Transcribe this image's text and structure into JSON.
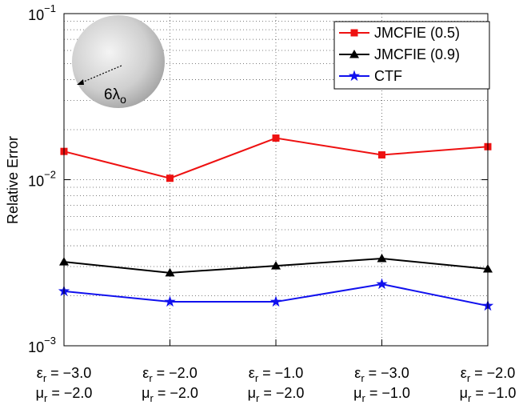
{
  "chart_data": {
    "type": "line",
    "y_label": "Relative Error",
    "log_y": true,
    "grid": true,
    "minor_grid": true,
    "legend": "upper-right",
    "annotation": {
      "text": "6λ",
      "sub": "o"
    },
    "categories": [
      [
        {
          "symbol": "ε",
          "sub": "r",
          "text": " = −3.0"
        },
        {
          "symbol": "μ",
          "sub": "r",
          "text": " = −2.0"
        }
      ],
      [
        {
          "symbol": "ε",
          "sub": "r",
          "text": " = −2.0"
        },
        {
          "symbol": "μ",
          "sub": "r",
          "text": " = −2.0"
        }
      ],
      [
        {
          "symbol": "ε",
          "sub": "r",
          "text": " = −1.0"
        },
        {
          "symbol": "μ",
          "sub": "r",
          "text": " = −2.0"
        }
      ],
      [
        {
          "symbol": "ε",
          "sub": "r",
          "text": " = −3.0"
        },
        {
          "symbol": "μ",
          "sub": "r",
          "text": " = −1.0"
        }
      ],
      [
        {
          "symbol": "ε",
          "sub": "r",
          "text": " = −2.0"
        },
        {
          "symbol": "μ",
          "sub": "r",
          "text": " = −1.0"
        }
      ]
    ],
    "ylim": [
      0.001,
      0.1
    ],
    "yticks": [
      {
        "value": 0.001,
        "label": "10",
        "power": "−3"
      },
      {
        "value": 0.01,
        "label": "10",
        "power": "−2"
      },
      {
        "value": 0.1,
        "label": "10",
        "power": "−1"
      }
    ],
    "series": [
      {
        "name": "JMCFIE (0.5)",
        "color": "#ee1111",
        "marker": "square",
        "values": [
          0.0148,
          0.0102,
          0.0178,
          0.0141,
          0.0158
        ]
      },
      {
        "name": "JMCFIE (0.9)",
        "color": "#000000",
        "marker": "triangle",
        "values": [
          0.0032,
          0.00275,
          0.00303,
          0.00335,
          0.0029
        ]
      },
      {
        "name": "CTF",
        "color": "#1111ee",
        "marker": "star",
        "values": [
          0.00213,
          0.00184,
          0.00184,
          0.00235,
          0.00174
        ]
      }
    ]
  }
}
